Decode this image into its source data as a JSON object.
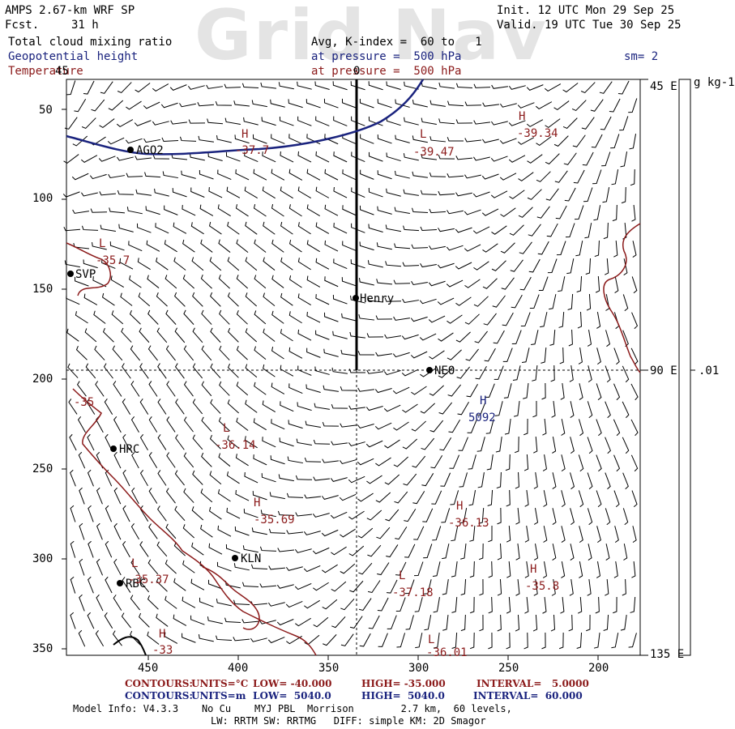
{
  "watermark": "Grid Nav",
  "header": {
    "model": "AMPS 2.67-km WRF SP",
    "fcst_label": "Fcst.",
    "fcst_value": "31 h",
    "init": "Init. 12 UTC Mon 29 Sep 25",
    "valid": "Valid. 19 UTC Tue 30 Sep 25",
    "field1": "Total cloud mixing ratio",
    "field1_desc": "Avg, K-index =  60 to   1",
    "field2": "Geopotential height",
    "field2_desc": "at pressure =  500 hPa",
    "field3": "Temperature",
    "field3_desc": "at pressure =  500 hPa",
    "smooth": "sm= 2"
  },
  "map": {
    "y_ticks": [
      "50",
      "100",
      "150",
      "200",
      "250",
      "300",
      "350"
    ],
    "x_ticks": [
      "450",
      "400",
      "350",
      "300",
      "250",
      "200"
    ],
    "lon_labels": [
      "45 E",
      "90 E",
      "135 E"
    ],
    "lat_label_top": "45",
    "lon_line_label": "0",
    "stations": [
      {
        "name": "AGO2"
      },
      {
        "name": "SVP"
      },
      {
        "name": "Henry"
      },
      {
        "name": "NEO"
      },
      {
        "name": "HRC"
      },
      {
        "name": "KLN"
      },
      {
        "name": "RBC"
      }
    ],
    "temp_labels": [
      {
        "sym": "H",
        "val": "-37.7"
      },
      {
        "sym": "L",
        "val": "-39.47"
      },
      {
        "sym": "H",
        "val": "-39.34"
      },
      {
        "sym": "L",
        "val": "-35.7"
      },
      {
        "sym": "",
        "val": "-35"
      },
      {
        "sym": "L",
        "val": "-36.14"
      },
      {
        "sym": "H",
        "val": "-35.69"
      },
      {
        "sym": "H",
        "val": "-36.13"
      },
      {
        "sym": "L",
        "val": "-35.37"
      },
      {
        "sym": "L",
        "val": "-37.18"
      },
      {
        "sym": "H",
        "val": "-35.8"
      },
      {
        "sym": "H",
        "val": "-33"
      },
      {
        "sym": "L",
        "val": "-36.01"
      }
    ],
    "height_label": {
      "sym": "H",
      "val": "5092"
    }
  },
  "colorbar": {
    "unit": "g kg-1",
    "tick": ".01"
  },
  "footer": {
    "line1": {
      "contours": "CONTOURS:",
      "units": "UNITS=°C",
      "low": "LOW= -40.000",
      "high": "HIGH= -35.000",
      "interval": "INTERVAL=   5.0000"
    },
    "line2": {
      "contours": "CONTOURS:",
      "units": "UNITS=m",
      "low": "LOW=  5040.0",
      "high": "HIGH=  5040.0",
      "interval": "INTERVAL=  60.000"
    },
    "line3": "Model Info: V4.3.3    No Cu    MYJ PBL  Morrison        2.7 km,  60 levels,",
    "line4": "LW: RRTM SW: RRTMG   DIFF: simple KM: 2D Smagor"
  },
  "colors": {
    "navy": "#1a237e",
    "maroon": "#8b1a1a",
    "black": "#000000"
  }
}
